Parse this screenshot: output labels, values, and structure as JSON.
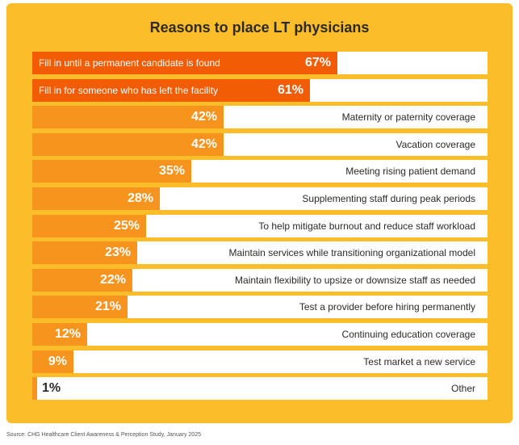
{
  "chart_data": {
    "type": "bar",
    "orientation": "horizontal",
    "title": "Reasons to place LT physicians",
    "xlim": [
      0,
      100
    ],
    "categories": [
      "Fill in until a permanent candidate is found",
      "Fill in for someone who has left the facility",
      "Maternity or paternity coverage",
      "Vacation coverage",
      "Meeting rising patient demand",
      "Supplementing staff during peak periods",
      "To help mitigate burnout and reduce staff workload",
      "Maintain services while transitioning organizational model",
      "Maintain flexibility to upsize or downsize staff as needed",
      "Test a provider before hiring permanently",
      "Continuing education coverage",
      "Test market a new service",
      "Other"
    ],
    "values": [
      67,
      61,
      42,
      42,
      35,
      28,
      25,
      23,
      22,
      21,
      12,
      9,
      1
    ],
    "value_labels": [
      "67%",
      "61%",
      "42%",
      "42%",
      "35%",
      "28%",
      "25%",
      "23%",
      "22%",
      "21%",
      "12%",
      "9%",
      "1%"
    ],
    "colors": {
      "panel": "#fbbd2a",
      "top_bars": "#f25c05",
      "bars": "#f7941d",
      "track": "#ffffff"
    },
    "grid": false,
    "legend": "none"
  },
  "source_text": "Source: CHG Healthcare Client Awareness & Perception Study, January 2025"
}
